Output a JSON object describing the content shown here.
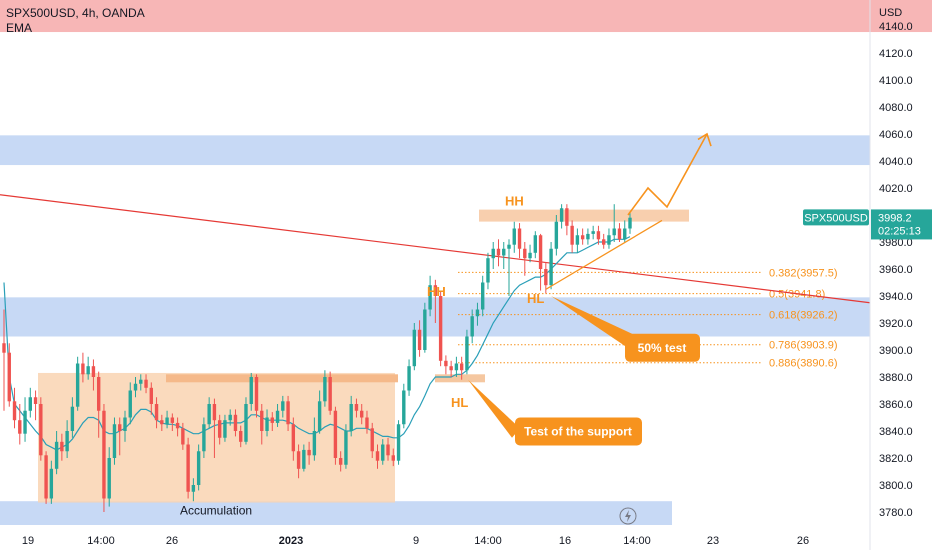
{
  "header": {
    "title": "SPX500USD, 4h, OANDA",
    "indicator": "EMA",
    "currency": "USD"
  },
  "price_badge": {
    "symbol": "SPX500USD",
    "value": "3998.2",
    "countdown": "02:25:13"
  },
  "colors": {
    "up": "#26a69a",
    "down": "#ef5350",
    "ema": "#2a9fb8",
    "zone_blue": "#c7d9f5",
    "zone_red": "#f7b6b6",
    "zone_orange": "#f9d3b1",
    "orange": "#f7931e",
    "trend": "#e53935"
  },
  "annotations": {
    "hh1": "HH",
    "hh2": "HH",
    "hl1": "HL",
    "hl2": "HL",
    "accumulation": "Accumulation",
    "test_support": "Test of the support",
    "fifty_test": "50% test"
  },
  "fib_levels": [
    {
      "label": "0.382(3957.5)",
      "value": 3957.5
    },
    {
      "label": "0.5(3941.8)",
      "value": 3941.8
    },
    {
      "label": "0.618(3926.2)",
      "value": 3926.2
    },
    {
      "label": "0.786(3903.9)",
      "value": 3903.9
    },
    {
      "label": "0.886(3890.6)",
      "value": 3890.6
    }
  ],
  "chart_data": {
    "type": "candlestick",
    "title": "SPX500USD, 4h, OANDA",
    "ylim": [
      3768,
      4150
    ],
    "y_ticks": [
      "4140.0",
      "4120.0",
      "4100.0",
      "4080.0",
      "4060.0",
      "4040.0",
      "4020.0",
      "4000.0",
      "3980.0",
      "3960.0",
      "3940.0",
      "3920.0",
      "3900.0",
      "3880.0",
      "3860.0",
      "3840.0",
      "3820.0",
      "3800.0",
      "3780.0"
    ],
    "x_ticks": [
      "19",
      "14:00",
      "26",
      "2023",
      "9",
      "14:00",
      "16",
      "14:00",
      "23",
      "26"
    ],
    "zones": [
      {
        "from": 4137,
        "to": 4160,
        "kind": "resistance"
      },
      {
        "from": 4037,
        "to": 4059,
        "kind": "supply"
      },
      {
        "from": 3910,
        "to": 3939,
        "kind": "support"
      },
      {
        "from": 3768,
        "to": 3788,
        "kind": "demand"
      }
    ],
    "candles": [
      [
        3905,
        3898,
        3930,
        3855
      ],
      [
        3898,
        3862,
        3905,
        3858
      ],
      [
        3862,
        3848,
        3872,
        3842
      ],
      [
        3848,
        3838,
        3860,
        3830
      ],
      [
        3838,
        3855,
        3865,
        3832
      ],
      [
        3855,
        3865,
        3872,
        3850
      ],
      [
        3865,
        3860,
        3870,
        3848
      ],
      [
        3860,
        3822,
        3865,
        3818
      ],
      [
        3822,
        3790,
        3825,
        3786
      ],
      [
        3790,
        3812,
        3818,
        3786
      ],
      [
        3812,
        3832,
        3840,
        3808
      ],
      [
        3832,
        3825,
        3838,
        3818
      ],
      [
        3825,
        3840,
        3848,
        3820
      ],
      [
        3840,
        3858,
        3865,
        3835
      ],
      [
        3858,
        3890,
        3895,
        3855
      ],
      [
        3890,
        3882,
        3898,
        3876
      ],
      [
        3882,
        3888,
        3895,
        3878
      ],
      [
        3888,
        3880,
        3893,
        3870
      ],
      [
        3880,
        3855,
        3884,
        3835
      ],
      [
        3855,
        3790,
        3860,
        3780
      ],
      [
        3790,
        3820,
        3828,
        3784
      ],
      [
        3820,
        3845,
        3850,
        3815
      ],
      [
        3845,
        3840,
        3850,
        3822
      ],
      [
        3840,
        3850,
        3855,
        3832
      ],
      [
        3850,
        3870,
        3876,
        3845
      ],
      [
        3870,
        3875,
        3880,
        3865
      ],
      [
        3875,
        3878,
        3882,
        3870
      ],
      [
        3878,
        3872,
        3882,
        3868
      ],
      [
        3872,
        3860,
        3876,
        3852
      ],
      [
        3860,
        3848,
        3865,
        3842
      ],
      [
        3848,
        3845,
        3852,
        3840
      ],
      [
        3845,
        3850,
        3855,
        3842
      ],
      [
        3850,
        3846,
        3853,
        3840
      ],
      [
        3846,
        3842,
        3850,
        3836
      ],
      [
        3842,
        3830,
        3846,
        3826
      ],
      [
        3830,
        3795,
        3835,
        3790
      ],
      [
        3795,
        3800,
        3805,
        3788
      ],
      [
        3800,
        3825,
        3830,
        3796
      ],
      [
        3825,
        3845,
        3850,
        3820
      ],
      [
        3845,
        3860,
        3865,
        3842
      ],
      [
        3860,
        3848,
        3864,
        3820
      ],
      [
        3848,
        3835,
        3852,
        3830
      ],
      [
        3835,
        3848,
        3852,
        3832
      ],
      [
        3848,
        3852,
        3856,
        3844
      ],
      [
        3852,
        3840,
        3856,
        3836
      ],
      [
        3840,
        3832,
        3844,
        3828
      ],
      [
        3832,
        3860,
        3865,
        3830
      ],
      [
        3860,
        3880,
        3883,
        3855
      ],
      [
        3880,
        3855,
        3882,
        3850
      ],
      [
        3855,
        3840,
        3860,
        3830
      ],
      [
        3840,
        3850,
        3856,
        3836
      ],
      [
        3850,
        3846,
        3854,
        3840
      ],
      [
        3846,
        3855,
        3860,
        3843
      ],
      [
        3855,
        3862,
        3866,
        3850
      ],
      [
        3862,
        3845,
        3866,
        3840
      ],
      [
        3845,
        3825,
        3850,
        3818
      ],
      [
        3825,
        3812,
        3830,
        3805
      ],
      [
        3812,
        3826,
        3830,
        3810
      ],
      [
        3826,
        3822,
        3832,
        3815
      ],
      [
        3822,
        3840,
        3850,
        3818
      ],
      [
        3840,
        3862,
        3870,
        3838
      ],
      [
        3862,
        3880,
        3885,
        3858
      ],
      [
        3880,
        3855,
        3884,
        3852
      ],
      [
        3855,
        3820,
        3858,
        3815
      ],
      [
        3820,
        3815,
        3825,
        3810
      ],
      [
        3815,
        3840,
        3845,
        3812
      ],
      [
        3840,
        3860,
        3866,
        3836
      ],
      [
        3860,
        3855,
        3864,
        3850
      ],
      [
        3855,
        3850,
        3860,
        3845
      ],
      [
        3850,
        3842,
        3855,
        3838
      ],
      [
        3842,
        3825,
        3846,
        3820
      ],
      [
        3825,
        3818,
        3830,
        3812
      ],
      [
        3818,
        3830,
        3834,
        3815
      ],
      [
        3830,
        3822,
        3835,
        3818
      ],
      [
        3822,
        3818,
        3827,
        3814
      ],
      [
        3818,
        3845,
        3848,
        3815
      ],
      [
        3845,
        3870,
        3875,
        3842
      ],
      [
        3870,
        3888,
        3893,
        3866
      ],
      [
        3888,
        3915,
        3920,
        3885
      ],
      [
        3915,
        3900,
        3922,
        3895
      ],
      [
        3900,
        3930,
        3935,
        3898
      ],
      [
        3930,
        3948,
        3955,
        3925
      ],
      [
        3948,
        3940,
        3952,
        3920
      ],
      [
        3940,
        3892,
        3944,
        3888
      ],
      [
        3892,
        3888,
        3896,
        3882
      ],
      [
        3888,
        3885,
        3892,
        3880
      ],
      [
        3885,
        3890,
        3895,
        3880
      ],
      [
        3890,
        3885,
        3895,
        3878
      ],
      [
        3885,
        3910,
        3915,
        3882
      ],
      [
        3910,
        3925,
        3930,
        3905
      ],
      [
        3925,
        3930,
        3935,
        3918
      ],
      [
        3930,
        3950,
        3955,
        3925
      ],
      [
        3950,
        3968,
        3972,
        3945
      ],
      [
        3968,
        3975,
        3980,
        3960
      ],
      [
        3975,
        3970,
        3982,
        3962
      ],
      [
        3970,
        3975,
        3980,
        3960
      ],
      [
        3975,
        3978,
        3982,
        3940
      ],
      [
        3978,
        3990,
        3995,
        3972
      ],
      [
        3990,
        3975,
        3994,
        3968
      ],
      [
        3975,
        3968,
        3980,
        3955
      ],
      [
        3968,
        3972,
        3978,
        3965
      ],
      [
        3972,
        3985,
        3988,
        3968
      ],
      [
        3985,
        3960,
        3986,
        3944
      ],
      [
        3960,
        3948,
        3965,
        3942
      ],
      [
        3948,
        3975,
        3980,
        3945
      ],
      [
        3975,
        3995,
        4000,
        3970
      ],
      [
        3995,
        4005,
        4008,
        3990
      ],
      [
        4005,
        3992,
        4008,
        3985
      ],
      [
        3992,
        3978,
        3996,
        3972
      ],
      [
        3978,
        3985,
        3990,
        3972
      ],
      [
        3985,
        3982,
        3990,
        3978
      ],
      [
        3982,
        3986,
        3990,
        3978
      ],
      [
        3986,
        3988,
        3992,
        3982
      ],
      [
        3988,
        3982,
        3992,
        3978
      ],
      [
        3982,
        3978,
        3986,
        3975
      ],
      [
        3978,
        3985,
        3990,
        3975
      ],
      [
        3985,
        3990,
        4008,
        3980
      ],
      [
        3990,
        3982,
        3994,
        3980
      ],
      [
        3982,
        3990,
        3996,
        3980
      ],
      [
        3990,
        3998,
        4002,
        3986
      ]
    ],
    "ema": [
      3950,
      3880,
      3860,
      3855,
      3850,
      3845,
      3840,
      3836,
      3830,
      3828,
      3826,
      3828,
      3830,
      3834,
      3840,
      3846,
      3850,
      3850,
      3848,
      3840,
      3838,
      3838,
      3840,
      3842,
      3846,
      3852,
      3856,
      3856,
      3854,
      3848,
      3846,
      3845,
      3845,
      3844,
      3842,
      3840,
      3838,
      3838,
      3840,
      3842,
      3844,
      3845,
      3846,
      3846,
      3846,
      3846,
      3848,
      3852,
      3852,
      3850,
      3848,
      3848,
      3848,
      3848,
      3847,
      3845,
      3842,
      3840,
      3838,
      3838,
      3840,
      3843,
      3845,
      3844,
      3842,
      3840,
      3840,
      3842,
      3842,
      3842,
      3840,
      3838,
      3836,
      3836,
      3835,
      3835,
      3838,
      3844,
      3852,
      3858,
      3866,
      3875,
      3880,
      3880,
      3880,
      3880,
      3882,
      3882,
      3885,
      3890,
      3896,
      3904,
      3912,
      3920,
      3926,
      3932,
      3938,
      3944,
      3948,
      3950,
      3952,
      3954,
      3954,
      3956,
      3960,
      3964,
      3968,
      3972,
      3972,
      3972,
      3974,
      3976,
      3978,
      3980,
      3980,
      3980,
      3982,
      3982,
      3982,
      3984
    ],
    "trendline": {
      "from": {
        "x": "start",
        "y": 4015
      },
      "to": {
        "x": "end",
        "y": 3935
      }
    }
  }
}
